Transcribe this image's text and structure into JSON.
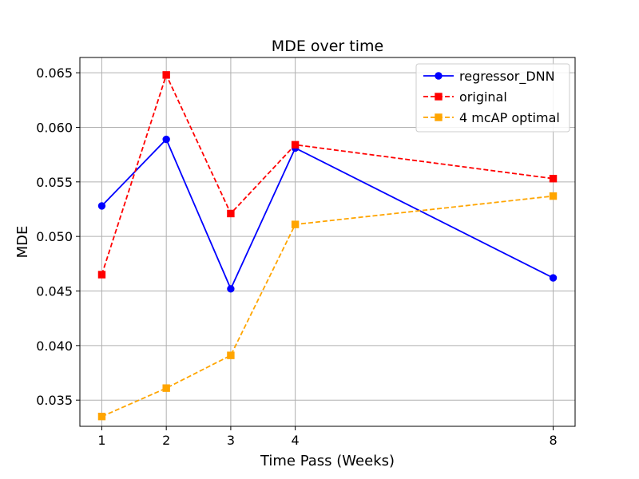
{
  "chart_data": {
    "type": "line",
    "title": "MDE over time",
    "xlabel": "Time Pass (Weeks)",
    "ylabel": "MDE",
    "x": [
      1,
      2,
      3,
      4,
      8
    ],
    "xticks": [
      "1",
      "2",
      "3",
      "4",
      "8"
    ],
    "xlim": [
      0.66,
      8.34
    ],
    "yticks": [
      0.035,
      0.04,
      0.045,
      0.05,
      0.055,
      0.06,
      0.065
    ],
    "ytick_labels": [
      "0.035",
      "0.040",
      "0.045",
      "0.050",
      "0.055",
      "0.060",
      "0.065"
    ],
    "ylim": [
      0.0326,
      0.0664
    ],
    "grid": true,
    "legend_position": "top-right",
    "series": [
      {
        "name": "regressor_DNN",
        "values": [
          0.0528,
          0.0589,
          0.0452,
          0.0581,
          0.0462
        ],
        "color": "#0000ff",
        "dash": "solid",
        "marker": "circle"
      },
      {
        "name": "original",
        "values": [
          0.0465,
          0.0648,
          0.0521,
          0.0584,
          0.0553
        ],
        "color": "#ff0000",
        "dash": "dashed",
        "marker": "square"
      },
      {
        "name": "4 mcAP optimal",
        "values": [
          0.0335,
          0.0361,
          0.0391,
          0.0511,
          0.0537
        ],
        "color": "#ffa500",
        "dash": "dashed",
        "marker": "square"
      }
    ]
  }
}
